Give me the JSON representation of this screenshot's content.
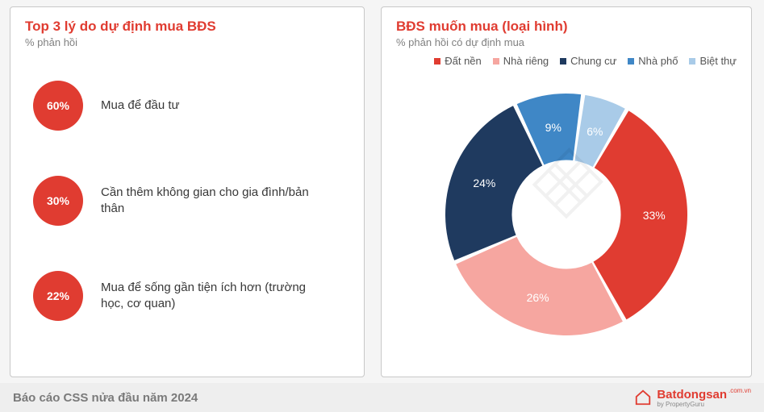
{
  "left": {
    "title": "Top 3 lý do dự định mua BĐS",
    "title_color": "#e03c31",
    "subtitle": "% phản hồi",
    "subtitle_color": "#808080",
    "title_fontsize": 17,
    "reasons": [
      {
        "pct": "60%",
        "text": "Mua để đầu tư",
        "color": "#e03c31",
        "size": 62
      },
      {
        "pct": "30%",
        "text": "Cần thêm không gian cho gia đình/bản thân",
        "color": "#e03c31",
        "size": 62
      },
      {
        "pct": "22%",
        "text": "Mua để sống gần tiện ích hơn (trường học, cơ quan)",
        "color": "#e03c31",
        "size": 62
      }
    ]
  },
  "right": {
    "title": "BĐS muốn mua (loại hình)",
    "title_color": "#e03c31",
    "subtitle": "% phản hồi có dự định mua",
    "subtitle_color": "#808080",
    "chart": {
      "type": "donut",
      "inner_radius_ratio": 0.45,
      "background": "#ffffff",
      "slice_gap_deg": 2,
      "label_fontsize": 14,
      "label_color": "#ffffff",
      "slices": [
        {
          "name": "Đất nền",
          "value": 33,
          "label": "33%",
          "color": "#e03c31"
        },
        {
          "name": "Nhà riêng",
          "value": 26,
          "label": "26%",
          "color": "#f6a6a0"
        },
        {
          "name": "Chung cư",
          "value": 24,
          "label": "24%",
          "color": "#1f3a5f"
        },
        {
          "name": "Nhà phố",
          "value": 9,
          "label": "9%",
          "color": "#3f87c6"
        },
        {
          "name": "Biệt thự",
          "value": 6,
          "label": "6%",
          "color": "#a9cbe8"
        }
      ],
      "legend_marker_size": 8,
      "legend_fontsize": 13
    }
  },
  "footer": {
    "text": "Báo cáo CSS nửa đầu năm 2024",
    "brand_main": "Batdongsan",
    "brand_super": ".com.vn",
    "brand_sub": "by PropertyGuru",
    "brand_color": "#e03c31"
  }
}
